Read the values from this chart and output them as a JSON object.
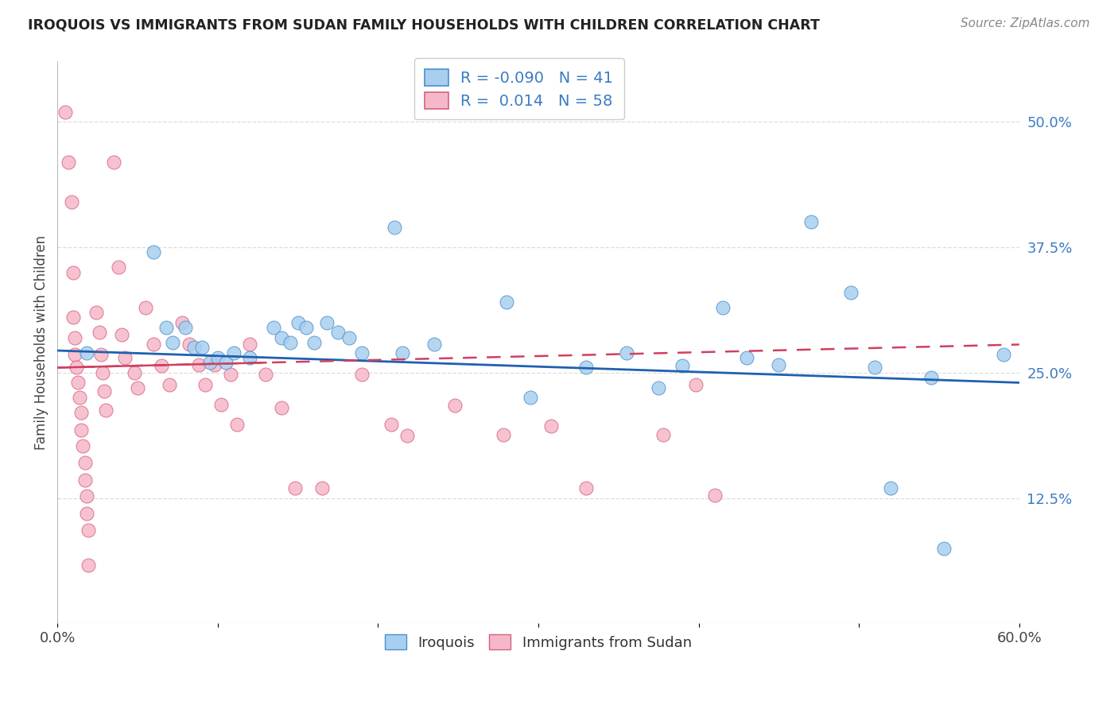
{
  "title": "IROQUOIS VS IMMIGRANTS FROM SUDAN FAMILY HOUSEHOLDS WITH CHILDREN CORRELATION CHART",
  "source": "Source: ZipAtlas.com",
  "ylabel": "Family Households with Children",
  "legend_label_blue": "Iroquois",
  "legend_label_pink": "Immigrants from Sudan",
  "r_blue": -0.09,
  "n_blue": 41,
  "r_pink": 0.014,
  "n_pink": 58,
  "xlim": [
    0.0,
    0.6
  ],
  "ylim": [
    0.0,
    0.56
  ],
  "xtick_pos": [
    0.0,
    0.1,
    0.2,
    0.3,
    0.4,
    0.5,
    0.6
  ],
  "xticklabels": [
    "0.0%",
    "",
    "",
    "",
    "",
    "",
    "60.0%"
  ],
  "ytick_positions": [
    0.125,
    0.25,
    0.375,
    0.5
  ],
  "ytick_labels": [
    "12.5%",
    "25.0%",
    "37.5%",
    "50.0%"
  ],
  "blue_face_color": "#A8CFEE",
  "pink_face_color": "#F5B8C8",
  "blue_edge_color": "#4A8FD0",
  "pink_edge_color": "#D86080",
  "blue_line_color": "#2060B0",
  "pink_line_color": "#D04060",
  "grid_color": "#DDDDDD",
  "blue_scatter": [
    [
      0.018,
      0.27
    ],
    [
      0.06,
      0.37
    ],
    [
      0.068,
      0.295
    ],
    [
      0.072,
      0.28
    ],
    [
      0.08,
      0.295
    ],
    [
      0.085,
      0.275
    ],
    [
      0.09,
      0.275
    ],
    [
      0.095,
      0.26
    ],
    [
      0.1,
      0.265
    ],
    [
      0.105,
      0.26
    ],
    [
      0.11,
      0.27
    ],
    [
      0.12,
      0.265
    ],
    [
      0.135,
      0.295
    ],
    [
      0.14,
      0.285
    ],
    [
      0.145,
      0.28
    ],
    [
      0.15,
      0.3
    ],
    [
      0.155,
      0.295
    ],
    [
      0.16,
      0.28
    ],
    [
      0.168,
      0.3
    ],
    [
      0.175,
      0.29
    ],
    [
      0.182,
      0.285
    ],
    [
      0.19,
      0.27
    ],
    [
      0.21,
      0.395
    ],
    [
      0.215,
      0.27
    ],
    [
      0.235,
      0.278
    ],
    [
      0.28,
      0.32
    ],
    [
      0.295,
      0.225
    ],
    [
      0.33,
      0.255
    ],
    [
      0.355,
      0.27
    ],
    [
      0.375,
      0.235
    ],
    [
      0.39,
      0.257
    ],
    [
      0.415,
      0.315
    ],
    [
      0.43,
      0.265
    ],
    [
      0.45,
      0.258
    ],
    [
      0.47,
      0.4
    ],
    [
      0.495,
      0.33
    ],
    [
      0.51,
      0.255
    ],
    [
      0.52,
      0.135
    ],
    [
      0.545,
      0.245
    ],
    [
      0.553,
      0.075
    ],
    [
      0.59,
      0.268
    ]
  ],
  "pink_scatter": [
    [
      0.005,
      0.51
    ],
    [
      0.007,
      0.46
    ],
    [
      0.009,
      0.42
    ],
    [
      0.01,
      0.35
    ],
    [
      0.01,
      0.305
    ],
    [
      0.011,
      0.285
    ],
    [
      0.011,
      0.268
    ],
    [
      0.012,
      0.255
    ],
    [
      0.013,
      0.24
    ],
    [
      0.014,
      0.225
    ],
    [
      0.015,
      0.21
    ],
    [
      0.015,
      0.193
    ],
    [
      0.016,
      0.177
    ],
    [
      0.017,
      0.16
    ],
    [
      0.017,
      0.143
    ],
    [
      0.018,
      0.127
    ],
    [
      0.018,
      0.11
    ],
    [
      0.019,
      0.093
    ],
    [
      0.019,
      0.058
    ],
    [
      0.024,
      0.31
    ],
    [
      0.026,
      0.29
    ],
    [
      0.027,
      0.268
    ],
    [
      0.028,
      0.25
    ],
    [
      0.029,
      0.232
    ],
    [
      0.03,
      0.213
    ],
    [
      0.035,
      0.46
    ],
    [
      0.038,
      0.355
    ],
    [
      0.04,
      0.288
    ],
    [
      0.042,
      0.265
    ],
    [
      0.048,
      0.25
    ],
    [
      0.05,
      0.235
    ],
    [
      0.055,
      0.315
    ],
    [
      0.06,
      0.278
    ],
    [
      0.065,
      0.257
    ],
    [
      0.07,
      0.238
    ],
    [
      0.078,
      0.3
    ],
    [
      0.082,
      0.278
    ],
    [
      0.088,
      0.258
    ],
    [
      0.092,
      0.238
    ],
    [
      0.098,
      0.258
    ],
    [
      0.102,
      0.218
    ],
    [
      0.108,
      0.248
    ],
    [
      0.112,
      0.198
    ],
    [
      0.12,
      0.278
    ],
    [
      0.13,
      0.248
    ],
    [
      0.14,
      0.215
    ],
    [
      0.148,
      0.135
    ],
    [
      0.165,
      0.135
    ],
    [
      0.19,
      0.248
    ],
    [
      0.208,
      0.198
    ],
    [
      0.218,
      0.187
    ],
    [
      0.248,
      0.217
    ],
    [
      0.278,
      0.188
    ],
    [
      0.308,
      0.197
    ],
    [
      0.33,
      0.135
    ],
    [
      0.378,
      0.188
    ],
    [
      0.398,
      0.238
    ],
    [
      0.41,
      0.128
    ]
  ]
}
